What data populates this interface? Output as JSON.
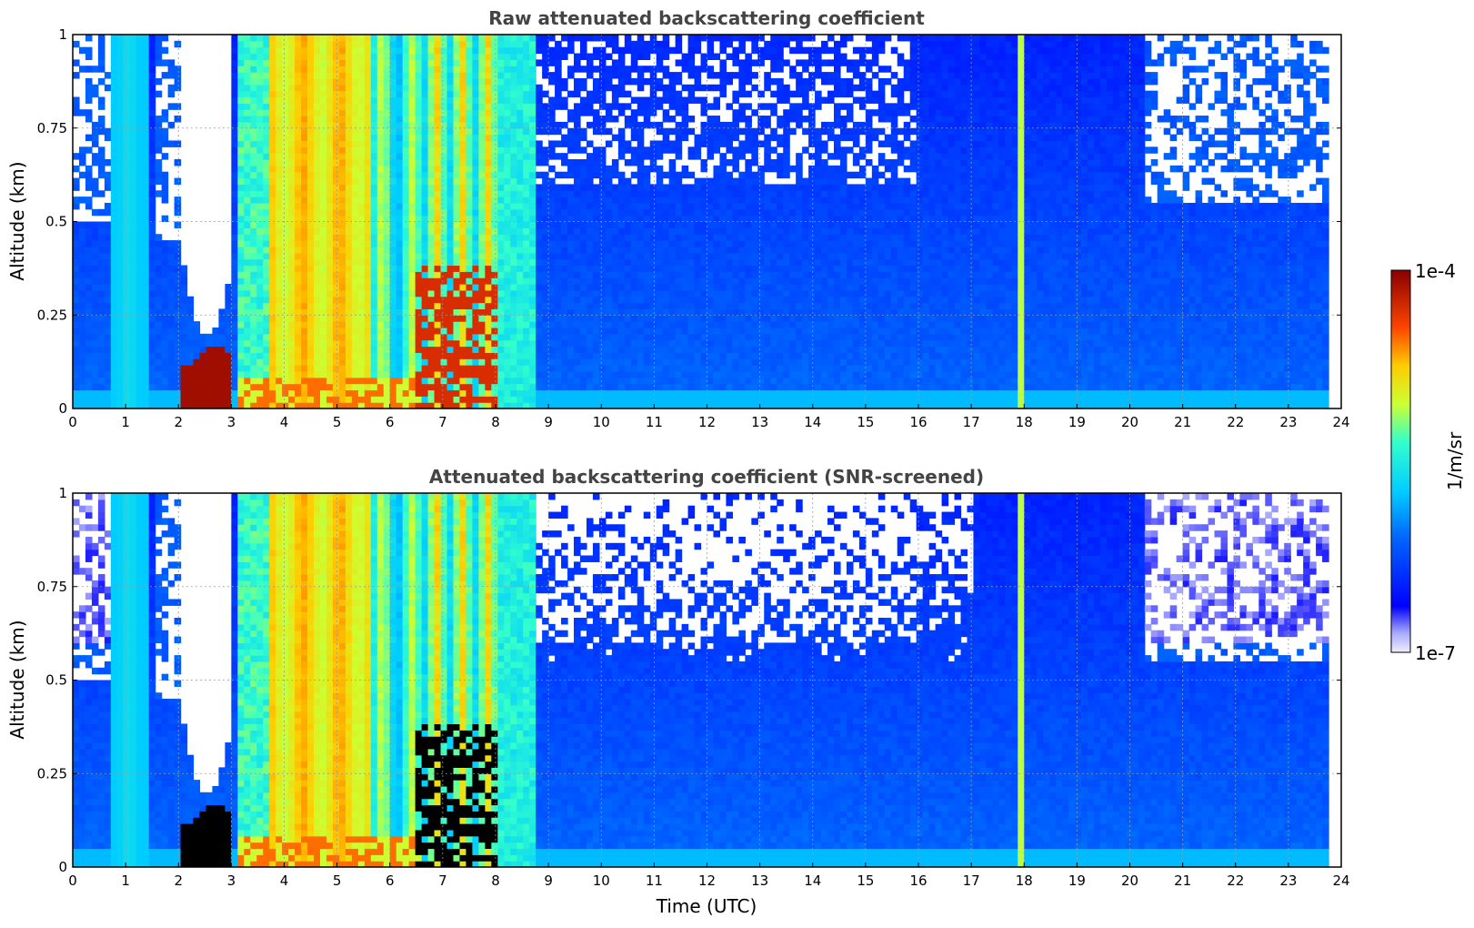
{
  "chart_data": [
    {
      "type": "heatmap",
      "title": "Raw attenuated backscattering coefficient",
      "ylabel": "Altitude (km)",
      "xlabel": "",
      "xlim": [
        0,
        24
      ],
      "ylim": [
        0,
        1
      ],
      "x_ticks": [
        "0",
        "1",
        "2",
        "3",
        "4",
        "5",
        "6",
        "7",
        "8",
        "9",
        "10",
        "11",
        "12",
        "13",
        "14",
        "15",
        "16",
        "17",
        "18",
        "19",
        "20",
        "21",
        "22",
        "23",
        "24"
      ],
      "y_ticks": [
        "0",
        "0.25",
        "0.5",
        "0.75",
        "1"
      ],
      "grid": true,
      "screened": false
    },
    {
      "type": "heatmap",
      "title": "Attenuated backscattering coefficient (SNR-screened)",
      "ylabel": "Altitude (km)",
      "xlabel": "Time (UTC)",
      "xlim": [
        0,
        24
      ],
      "ylim": [
        0,
        1
      ],
      "x_ticks": [
        "0",
        "1",
        "2",
        "3",
        "4",
        "5",
        "6",
        "7",
        "8",
        "9",
        "10",
        "11",
        "12",
        "13",
        "14",
        "15",
        "16",
        "17",
        "18",
        "19",
        "20",
        "21",
        "22",
        "23",
        "24"
      ],
      "y_ticks": [
        "0",
        "0.25",
        "0.5",
        "0.75",
        "1"
      ],
      "grid": true,
      "screened": true
    }
  ],
  "colorbar": {
    "label": "1/m/sr",
    "max_label": "1e-4",
    "min_label": "1e-7",
    "scale": "log",
    "colormap": "jet"
  },
  "colors": {
    "background": "#ffffff",
    "title": "#444444",
    "saturated": "#000000"
  }
}
